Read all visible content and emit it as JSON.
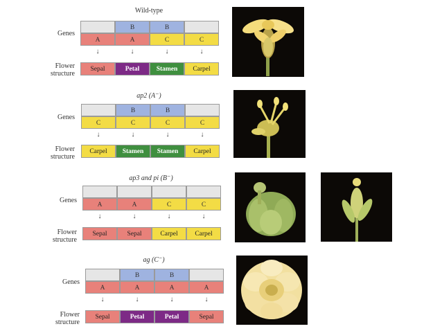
{
  "panels": [
    {
      "title": "Wild-type",
      "gene_label": "Genes",
      "structure_label": [
        "Flower",
        "structure"
      ],
      "b_row": [
        "",
        "B",
        "B",
        ""
      ],
      "abc_row": [
        "A",
        "A",
        "C",
        "C"
      ],
      "structures": [
        "Sepal",
        "Petal",
        "Stamen",
        "Carpel"
      ]
    },
    {
      "title": "ap2 (A⁻)",
      "gene_label": "Genes",
      "structure_label": [
        "Flower",
        "structure"
      ],
      "b_row": [
        "",
        "B",
        "B",
        ""
      ],
      "abc_row": [
        "C",
        "C",
        "C",
        "C"
      ],
      "structures": [
        "Carpel",
        "Stamen",
        "Stamen",
        "Carpel"
      ]
    },
    {
      "title": "ap3 and pi (B⁻)",
      "gene_label": "Genes",
      "structure_label": [
        "Flower",
        "structure"
      ],
      "b_row": [
        "",
        "",
        "",
        ""
      ],
      "abc_row": [
        "A",
        "A",
        "C",
        "C"
      ],
      "structures": [
        "Sepal",
        "Sepal",
        "Carpel",
        "Carpel"
      ]
    },
    {
      "title": "ag (C⁻)",
      "gene_label": "Genes",
      "structure_label": [
        "Flower",
        "structure"
      ],
      "b_row": [
        "",
        "B",
        "B",
        ""
      ],
      "abc_row": [
        "A",
        "A",
        "A",
        "A"
      ],
      "structures": [
        "Sepal",
        "Petal",
        "Petal",
        "Sepal"
      ]
    }
  ],
  "arrow_glyph": "↓",
  "colors": {
    "gene_A": "#e8817a",
    "gene_B": "#9fb3e0",
    "gene_C": "#f3dc45",
    "gene_empty": "#e6e6e6",
    "Sepal": "#e8817a",
    "Petal": "#7d2a86",
    "Stamen": "#3f8f3f",
    "Carpel": "#f3dc45",
    "photo_bg": "#0c0906"
  }
}
